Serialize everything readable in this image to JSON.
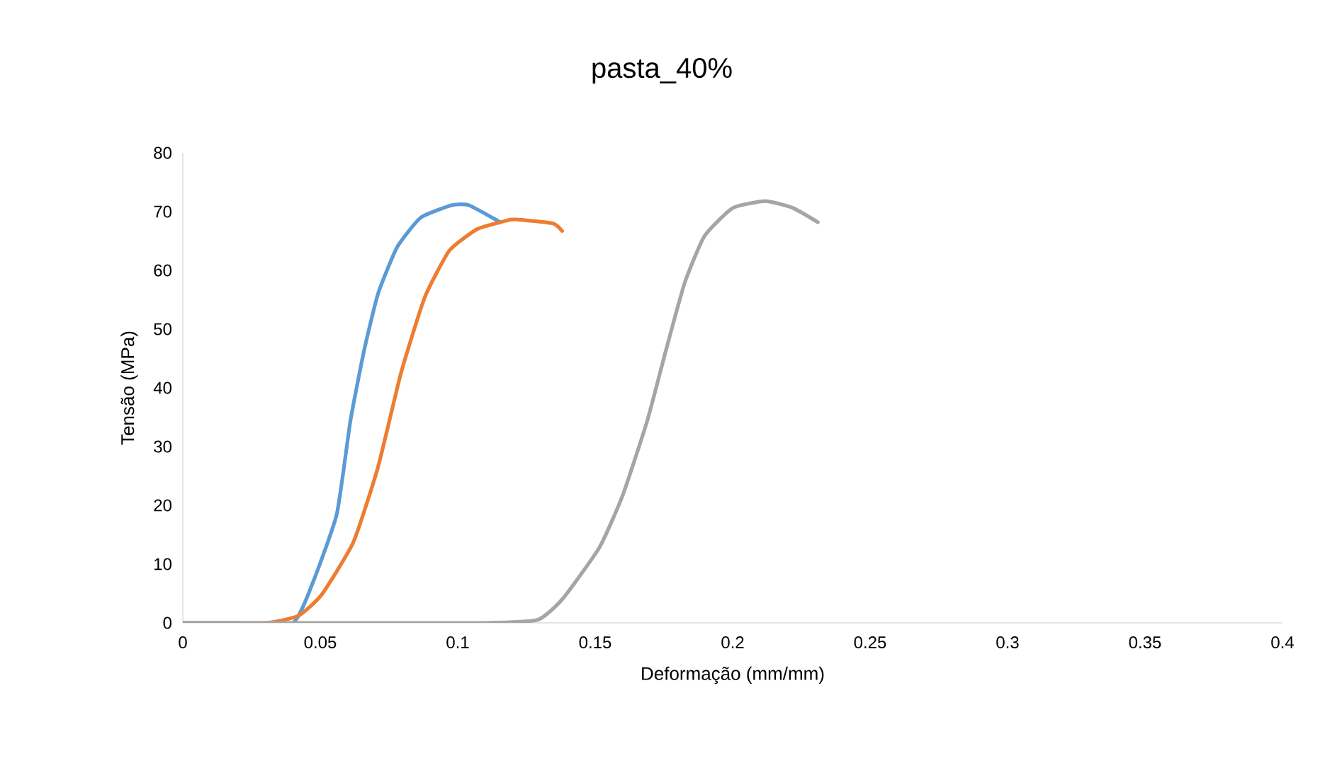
{
  "chart_data": {
    "type": "line",
    "title": "pasta_40%",
    "xlabel": "Deformação (mm/mm)",
    "ylabel": "Tensão (MPa)",
    "xlim": [
      0,
      0.4
    ],
    "xticks": [
      0,
      0.05,
      0.1,
      0.15,
      0.2,
      0.25,
      0.3,
      0.35,
      0.4
    ],
    "ylim": [
      0,
      80
    ],
    "yticks": [
      0,
      10,
      20,
      30,
      40,
      50,
      60,
      70,
      80
    ],
    "series": [
      {
        "color": "#5b9bd5",
        "x": [
          0,
          0.02,
          0.04,
          0.047,
          0.056,
          0.061,
          0.066,
          0.071,
          0.078,
          0.0866,
          0.098,
          0.104,
          0.1155
        ],
        "values": [
          0,
          0,
          0,
          6.5,
          18.5,
          34.5,
          46.5,
          56,
          64,
          69,
          71.1,
          71.1,
          68.2
        ]
      },
      {
        "color": "#ed7d31",
        "x": [
          0,
          0.03,
          0.042,
          0.0505,
          0.062,
          0.071,
          0.0794,
          0.088,
          0.097,
          0.107,
          0.1155,
          0.1206,
          0.1345,
          0.138
        ],
        "values": [
          0,
          0,
          1.2,
          4.8,
          13.7,
          26.5,
          42.6,
          55.4,
          63.4,
          67,
          68.2,
          68.7,
          68,
          66.7
        ]
      },
      {
        "color": "#a5a5a5",
        "x": [
          0,
          0.05,
          0.11,
          0.129,
          0.138,
          0.1515,
          0.16,
          0.169,
          0.1758,
          0.1825,
          0.1897,
          0.2,
          0.2119,
          0.222,
          0.231
        ],
        "values": [
          0,
          0,
          0,
          0.5,
          4,
          12.8,
          21.7,
          34.5,
          46.5,
          57.8,
          65.8,
          70.6,
          71.8,
          70.6,
          68.2
        ]
      }
    ]
  }
}
